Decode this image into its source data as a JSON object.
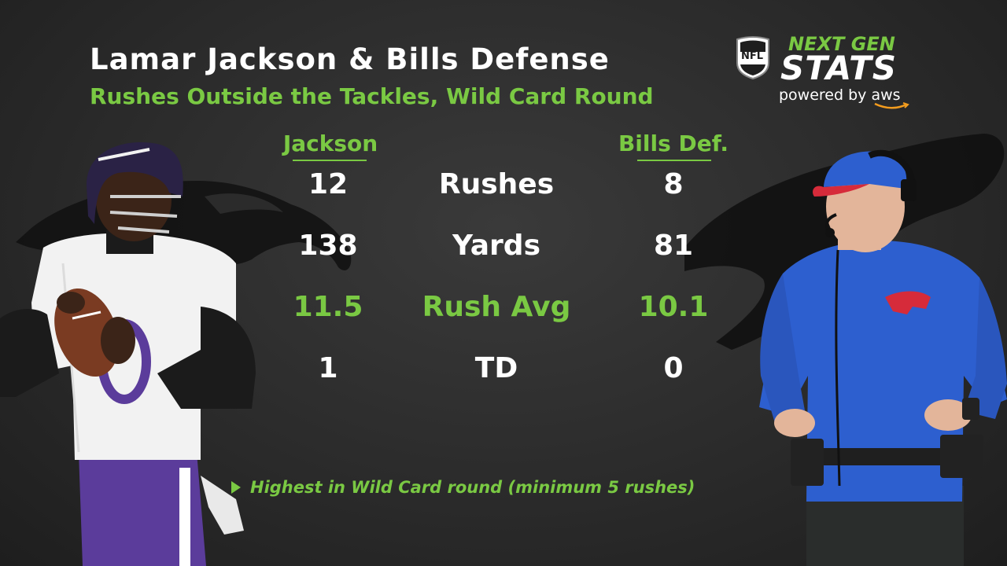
{
  "header": {
    "title": "Lamar Jackson & Bills Defense",
    "subtitle": "Rushes Outside the Tackles, Wild Card Round"
  },
  "logo": {
    "nfl_text": "NFL",
    "next_gen": "NEXT GEN",
    "stats": "STATS",
    "powered_by": "powered by aws"
  },
  "table": {
    "left_header": "Jackson",
    "right_header": "Bills Def.",
    "rows": [
      {
        "left": "12",
        "label": "Rushes",
        "right": "8"
      },
      {
        "left": "138",
        "label": "Yards",
        "right": "81"
      },
      {
        "left": "11.5",
        "label": "Rush Avg",
        "right": "10.1"
      },
      {
        "left": "1",
        "label": "TD",
        "right": "0"
      }
    ]
  },
  "footnote": "Highest in Wild Card round (minimum 5 rushes)",
  "colors": {
    "accent": "#7ac943",
    "background": "#2b2b2b",
    "ravens_purple": "#5b3c9b",
    "bills_blue": "#2d5fcf",
    "bills_red": "#d62b3a"
  },
  "icons": {
    "league_logo": "nfl-shield-icon",
    "left_team_logo": "raven-silhouette",
    "right_team_logo": "buffalo-silhouette"
  }
}
